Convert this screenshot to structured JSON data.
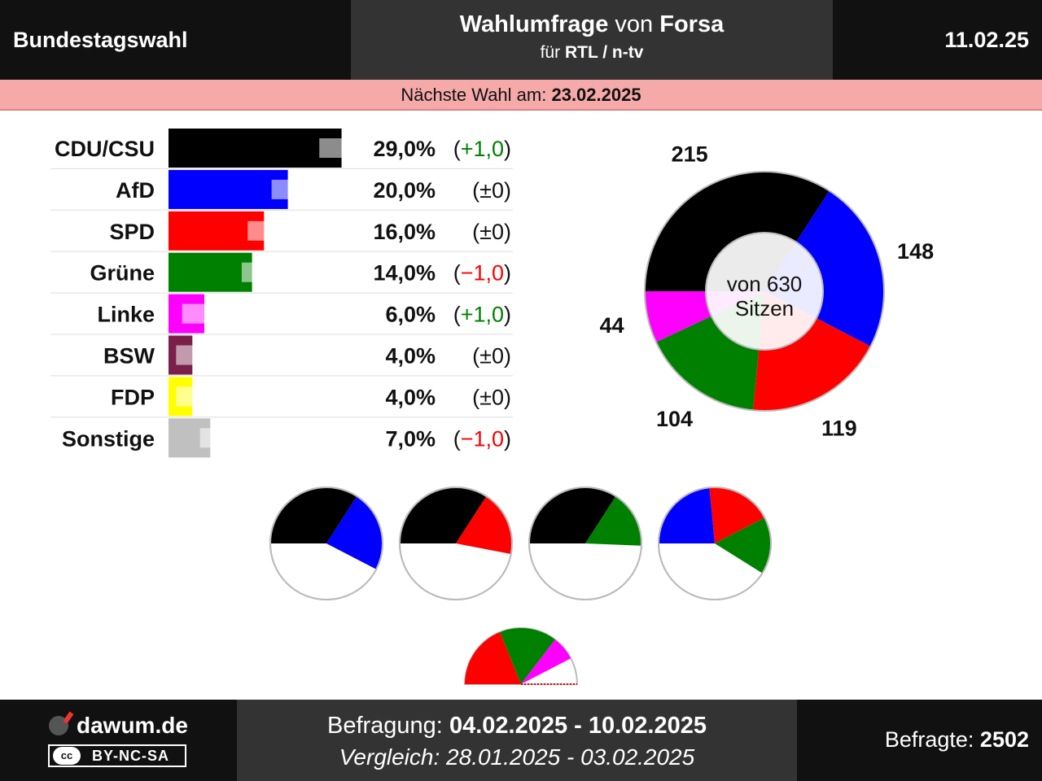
{
  "header": {
    "left_title": "Bundestagswahl",
    "title_main": "Wahlumfrage",
    "title_von": "von",
    "title_institute": "Forsa",
    "sub_fuer": "für",
    "sub_client": "RTL / n-tv",
    "date": "11.02.25"
  },
  "next_election": {
    "label": "Nächste Wahl am:",
    "date": "23.02.2025"
  },
  "footer": {
    "logo": "dawum.de",
    "license": "BY-NC-SA",
    "license_badge": "cc",
    "survey_label": "Befragung:",
    "survey_period": "04.02.2025 - 10.02.2025",
    "compare_label": "Vergleich:",
    "compare_period": "28.01.2025 - 03.02.2025",
    "respondents_label": "Befragte:",
    "respondents": "2502"
  },
  "colors": {
    "CDU/CSU": "#000000",
    "AfD": "#0000ff",
    "SPD": "#ff0000",
    "Grüne": "#008000",
    "Linke": "#ff00ff",
    "BSW": "#7a1f4a",
    "FDP": "#ffff00",
    "Sonstige": "#c0c0c0",
    "positive": "#008000",
    "negative": "#ff0000"
  },
  "chart_data": [
    {
      "type": "bar",
      "categories": [
        "CDU/CSU",
        "AfD",
        "SPD",
        "Grüne",
        "Linke",
        "BSW",
        "FDP",
        "Sonstige"
      ],
      "values": [
        29.0,
        20.0,
        16.0,
        14.0,
        6.0,
        4.0,
        4.0,
        7.0
      ],
      "previous": [
        28.0,
        20.0,
        16.0,
        15.0,
        5.0,
        4.0,
        4.0,
        8.0
      ],
      "value_labels": [
        "29,0%",
        "20,0%",
        "16,0%",
        "14,0%",
        "6,0%",
        "4,0%",
        "4,0%",
        "7,0%"
      ],
      "change_labels": [
        "(+1,0)",
        "(±0)",
        "(±0)",
        "(−1,0)",
        "(+1,0)",
        "(±0)",
        "(±0)",
        "(−1,0)"
      ],
      "changes": [
        1.0,
        0,
        0,
        -1.0,
        1.0,
        0,
        0,
        -1.0
      ]
    },
    {
      "type": "pie",
      "title": "von 630 Sitzen",
      "total": 630,
      "labels": [
        "CDU/CSU",
        "AfD",
        "SPD",
        "Grüne",
        "Linke"
      ],
      "values": [
        215,
        148,
        119,
        104,
        44
      ],
      "value_labels": [
        "215",
        "148",
        "119",
        "104",
        "44"
      ]
    },
    {
      "type": "pie",
      "subtype": "coalitions",
      "coalitions": [
        {
          "labels": [
            "CDU/CSU",
            "AfD"
          ],
          "values": [
            215,
            148
          ]
        },
        {
          "labels": [
            "CDU/CSU",
            "SPD"
          ],
          "values": [
            215,
            119
          ]
        },
        {
          "labels": [
            "CDU/CSU",
            "Grüne"
          ],
          "values": [
            215,
            104
          ]
        },
        {
          "labels": [
            "AfD",
            "SPD",
            "Grüne"
          ],
          "values": [
            148,
            119,
            104
          ]
        },
        {
          "labels": [
            "SPD",
            "Grüne",
            "Linke"
          ],
          "values": [
            119,
            104,
            44
          ]
        }
      ]
    }
  ]
}
